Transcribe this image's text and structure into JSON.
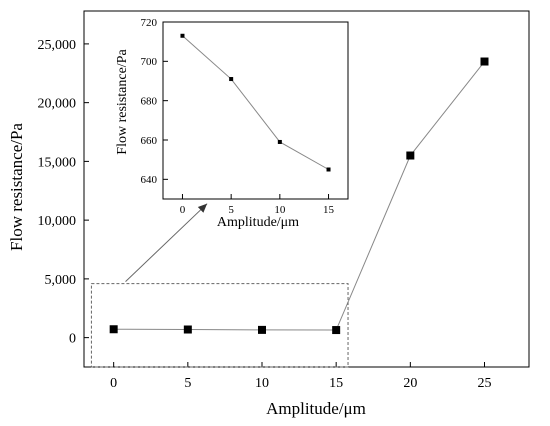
{
  "chart_data": [
    {
      "type": "line",
      "xlabel": "Amplitude/μm",
      "ylabel": "Flow resistance/Pa",
      "x": [
        0,
        5,
        10,
        15,
        20,
        25
      ],
      "series": [
        {
          "values": [
            713,
            691,
            659,
            645,
            15500,
            23500
          ]
        }
      ],
      "xticks": [
        "0",
        "5",
        "10",
        "15",
        "20",
        "25"
      ],
      "yticks": [
        "0",
        "5,000",
        "10,000",
        "15,000",
        "20,000",
        "25,000"
      ],
      "xlim": [
        -2,
        28
      ],
      "ylim": [
        -2500,
        27800
      ],
      "marker": "square",
      "color": "#000000",
      "line_color": "#888888",
      "grid": false,
      "annotation": "dashed-box around x 0–15 points with arrow to inset"
    },
    {
      "type": "line",
      "inset": true,
      "xlabel": "Amplitude/μm",
      "ylabel": "Flow resistance/Pa",
      "x": [
        0,
        5,
        10,
        15
      ],
      "series": [
        {
          "values": [
            713,
            691,
            659,
            645
          ]
        }
      ],
      "xticks": [
        "0",
        "5",
        "10",
        "15"
      ],
      "yticks": [
        "640",
        "660",
        "680",
        "700",
        "720"
      ],
      "xlim": [
        -2,
        17
      ],
      "ylim": [
        630,
        720
      ],
      "marker": "square",
      "color": "#000000",
      "line_color": "#888888",
      "grid": false
    }
  ]
}
